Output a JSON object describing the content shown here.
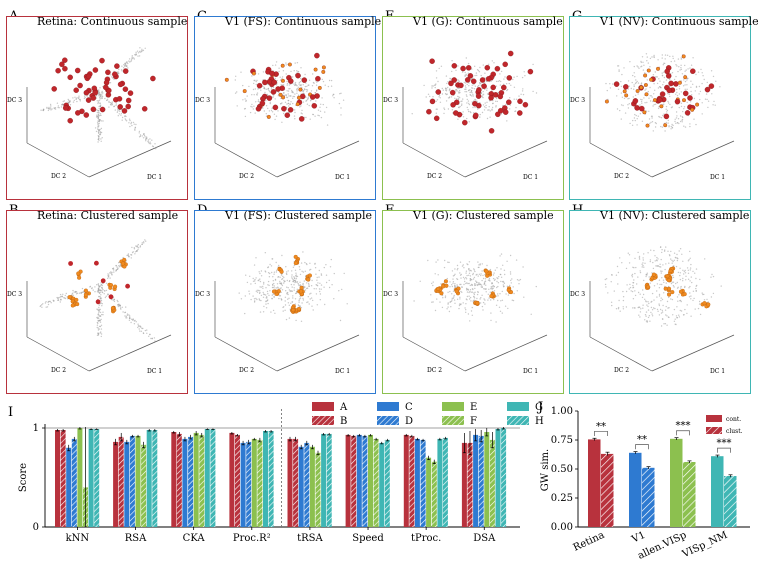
{
  "panels": [
    {
      "letter": "A",
      "title": "Retina: Continuous sample",
      "color": "#b8323d",
      "sample": "continuous"
    },
    {
      "letter": "C",
      "title": "V1 (FS): Continuous sample",
      "color": "#2e7ad1",
      "sample": "continuous"
    },
    {
      "letter": "E",
      "title": "V1 (G): Continuous sample",
      "color": "#8cc04f",
      "sample": "continuous"
    },
    {
      "letter": "G",
      "title": "V1 (NV): Continuous sample",
      "color": "#3fb6b4",
      "sample": "continuous"
    },
    {
      "letter": "B",
      "title": "Retina: Clustered sample",
      "color": "#b8323d",
      "sample": "clustered"
    },
    {
      "letter": "D",
      "title": "V1 (FS): Clustered sample",
      "color": "#2e7ad1",
      "sample": "clustered"
    },
    {
      "letter": "F",
      "title": "V1 (G): Clustered sample",
      "color": "#8cc04f",
      "sample": "clustered"
    },
    {
      "letter": "H",
      "title": "V1 (NV): Clustered sample",
      "color": "#3fb6b4",
      "sample": "clustered"
    }
  ],
  "axis_labels": {
    "dc1": "DC 1",
    "dc2": "DC 2",
    "dc3": "DC 3"
  },
  "chart_data": [
    {
      "type": "bar",
      "panel_letter": "I",
      "ylabel": "Score",
      "ylim": [
        0,
        1
      ],
      "yticks": [
        0,
        1
      ],
      "categories": [
        "kNN",
        "RSA",
        "CKA",
        "Proc.R²",
        "tRSA",
        "Speed",
        "tProc.",
        "DSA"
      ],
      "separator_after": "Proc.R²",
      "legend_placement": "top-right",
      "series": [
        {
          "name": "A",
          "color": "#b8323d",
          "hatch": false,
          "values": [
            0.98,
            0.86,
            0.96,
            0.95,
            0.89,
            0.93,
            0.93,
            0.85
          ],
          "errors": [
            0.01,
            0.03,
            0.01,
            0.01,
            0.02,
            0.01,
            0.01,
            0.1
          ]
        },
        {
          "name": "B",
          "color": "#b8323d",
          "hatch": true,
          "values": [
            0.98,
            0.91,
            0.94,
            0.93,
            0.89,
            0.92,
            0.92,
            0.85
          ],
          "errors": [
            0.01,
            0.04,
            0.02,
            0.01,
            0.02,
            0.01,
            0.01,
            0.12
          ]
        },
        {
          "name": "C",
          "color": "#2e7ad1",
          "hatch": false,
          "values": [
            0.8,
            0.86,
            0.89,
            0.85,
            0.81,
            0.93,
            0.89,
            0.93
          ],
          "errors": [
            0.03,
            0.02,
            0.02,
            0.02,
            0.02,
            0.01,
            0.01,
            0.06
          ]
        },
        {
          "name": "D",
          "color": "#2e7ad1",
          "hatch": true,
          "values": [
            0.89,
            0.92,
            0.91,
            0.86,
            0.85,
            0.92,
            0.88,
            0.92
          ],
          "errors": [
            0.02,
            0.01,
            0.02,
            0.02,
            0.02,
            0.01,
            0.01,
            0.06
          ]
        },
        {
          "name": "E",
          "color": "#8cc04f",
          "hatch": false,
          "values": [
            1.0,
            0.92,
            0.95,
            0.89,
            0.81,
            0.93,
            0.7,
            0.96
          ],
          "errors": [
            0.01,
            0.01,
            0.02,
            0.01,
            0.02,
            0.01,
            0.02,
            0.04
          ]
        },
        {
          "name": "F",
          "color": "#8cc04f",
          "hatch": true,
          "values": [
            0.4,
            0.83,
            0.93,
            0.88,
            0.75,
            0.89,
            0.66,
            0.88
          ],
          "errors": [
            0.61,
            0.03,
            0.02,
            0.02,
            0.02,
            0.01,
            0.02,
            0.08
          ]
        },
        {
          "name": "G",
          "color": "#3fb6b4",
          "hatch": false,
          "values": [
            0.99,
            0.98,
            0.99,
            0.97,
            0.94,
            0.85,
            0.89,
            0.99
          ],
          "errors": [
            0.005,
            0.01,
            0.005,
            0.01,
            0.01,
            0.01,
            0.01,
            0.01
          ]
        },
        {
          "name": "H",
          "color": "#3fb6b4",
          "hatch": true,
          "values": [
            0.99,
            0.98,
            0.99,
            0.97,
            0.94,
            0.88,
            0.9,
            1.0
          ],
          "errors": [
            0.005,
            0.01,
            0.005,
            0.01,
            0.01,
            0.01,
            0.01,
            0.01
          ]
        }
      ]
    },
    {
      "type": "bar",
      "panel_letter": "J",
      "ylabel": "GW sim.",
      "ylim": [
        0,
        1
      ],
      "yticks": [
        "0.00",
        "0.25",
        "0.50",
        "0.75",
        "1.00"
      ],
      "categories": [
        "Retina",
        "V1",
        "allen.VISp",
        "VISp_NM"
      ],
      "colors": [
        "#b8323d",
        "#2e7ad1",
        "#8cc04f",
        "#3fb6b4"
      ],
      "legend": [
        "cont.",
        "clust."
      ],
      "legend_placement": "top-right",
      "series": [
        {
          "name": "cont.",
          "hatch": false,
          "values": [
            0.755,
            0.64,
            0.76,
            0.61
          ],
          "errors": [
            0.01,
            0.01,
            0.01,
            0.01
          ]
        },
        {
          "name": "clust.",
          "hatch": true,
          "values": [
            0.63,
            0.51,
            0.56,
            0.44
          ],
          "errors": [
            0.015,
            0.01,
            0.01,
            0.01
          ]
        }
      ],
      "significance": [
        "**",
        "**",
        "***",
        "***"
      ]
    }
  ]
}
